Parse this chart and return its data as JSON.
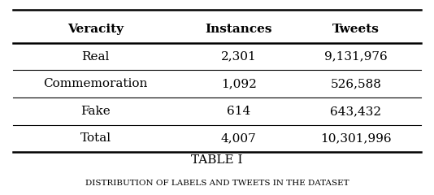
{
  "headers": [
    "Veracity",
    "Instances",
    "Tweets"
  ],
  "rows": [
    [
      "Real",
      "2,301",
      "9,131,976"
    ],
    [
      "Commemoration",
      "1,092",
      "526,588"
    ],
    [
      "Fake",
      "614",
      "643,432"
    ],
    [
      "Total",
      "4,007",
      "10,301,996"
    ]
  ],
  "table_title": "TABLE I",
  "caption": "Distribution of labels and tweets in the dataset",
  "bg_color": "#ffffff",
  "text_color": "#000000",
  "font_size": 11,
  "header_font_size": 11,
  "caption_font_size": 9
}
